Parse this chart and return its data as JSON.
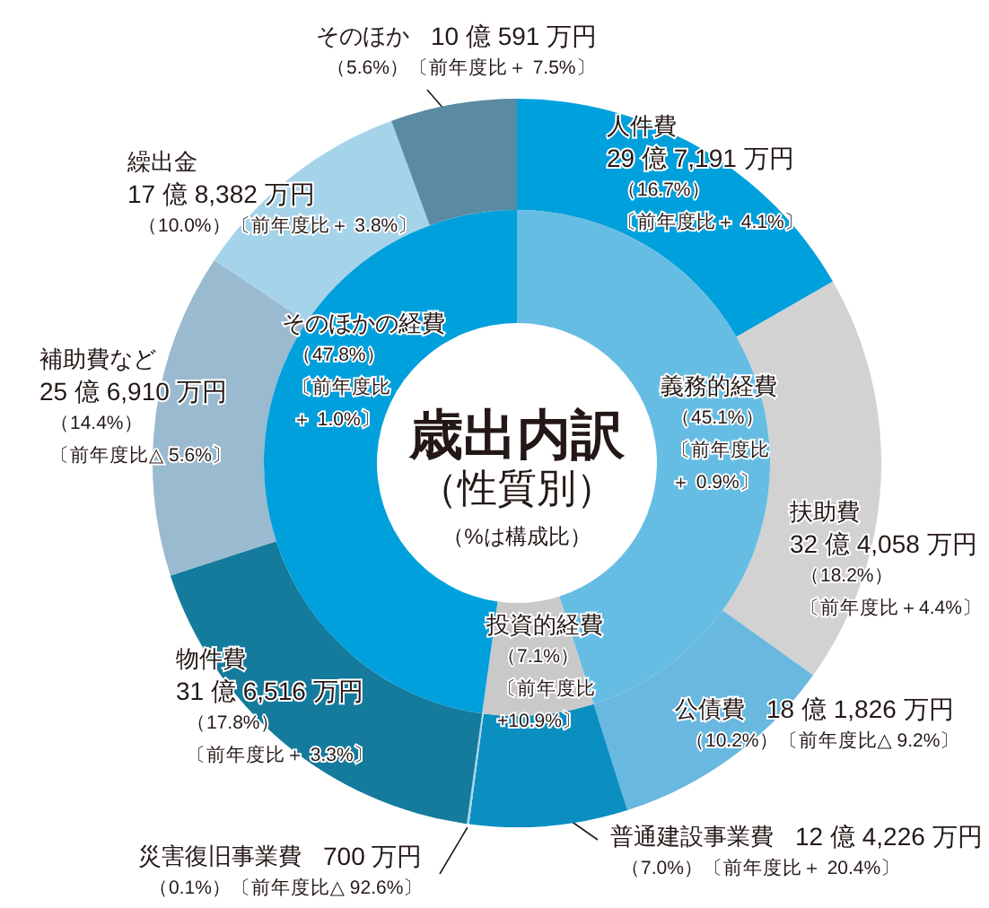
{
  "chart_data": [
    {
      "type": "donut",
      "title": "歳出内訳",
      "subtitle": "（性質別）",
      "annotations": [
        "（%は構成比）"
      ],
      "categories": [
        "義務的経費",
        "投資的経費",
        "そのほかの経費"
      ],
      "values": [
        45.1,
        7.1,
        47.8
      ],
      "colors": [
        "#66bde4",
        "#c9c9c9",
        "#00a0dc"
      ],
      "value_labels": [
        "（45.1%）〔前年度比＋ 0.9%〕",
        "（7.1%）〔前年度比+10.9%〕",
        "（47.8%）〔前年度比＋ 1.0%〕"
      ]
    },
    {
      "type": "donut",
      "categories": [
        "人件費",
        "扶助費",
        "公債費",
        "普通建設事業費",
        "災害復旧事業費",
        "物件費",
        "補助費など",
        "繰出金",
        "そのほか"
      ],
      "values": [
        16.7,
        18.2,
        10.2,
        7.0,
        0.1,
        17.8,
        14.4,
        10.0,
        5.6
      ],
      "colors": [
        "#00a0dc",
        "#d2d2d2",
        "#68b8e0",
        "#0a8fc0",
        "#a9d6ec",
        "#147b9d",
        "#9abacf",
        "#a5d3ea",
        "#5a8ba3"
      ],
      "value_labels": [
        "（16.7%）〔前年度比＋ 4.1%〕",
        "（18.2%）〔前年度比＋4.4%〕",
        "（10.2%）〔前年度比△ 9.2%〕",
        "（7.0%）〔前年度比＋ 20.4%〕",
        "（0.1%）〔前年度比△ 92.6%〕",
        "（17.8%）〔前年度比＋ 3.3%〕",
        "（14.4%）〔前年度比△ 5.6%〕",
        "（10.0%）〔前年度比＋ 3.8%〕",
        "（5.6%）〔前年度比＋ 7.5%〕"
      ],
      "annotations": [
        "29 億 7,191 万円",
        "32 億 4,058 万円",
        "18 億 1,826 万円",
        "12 億 4,226 万円",
        "700 万円",
        "31 億 6,516 万円",
        "25 億 6,910 万円",
        "17 億 8,382 万円",
        "10 億 591 万円"
      ]
    }
  ]
}
